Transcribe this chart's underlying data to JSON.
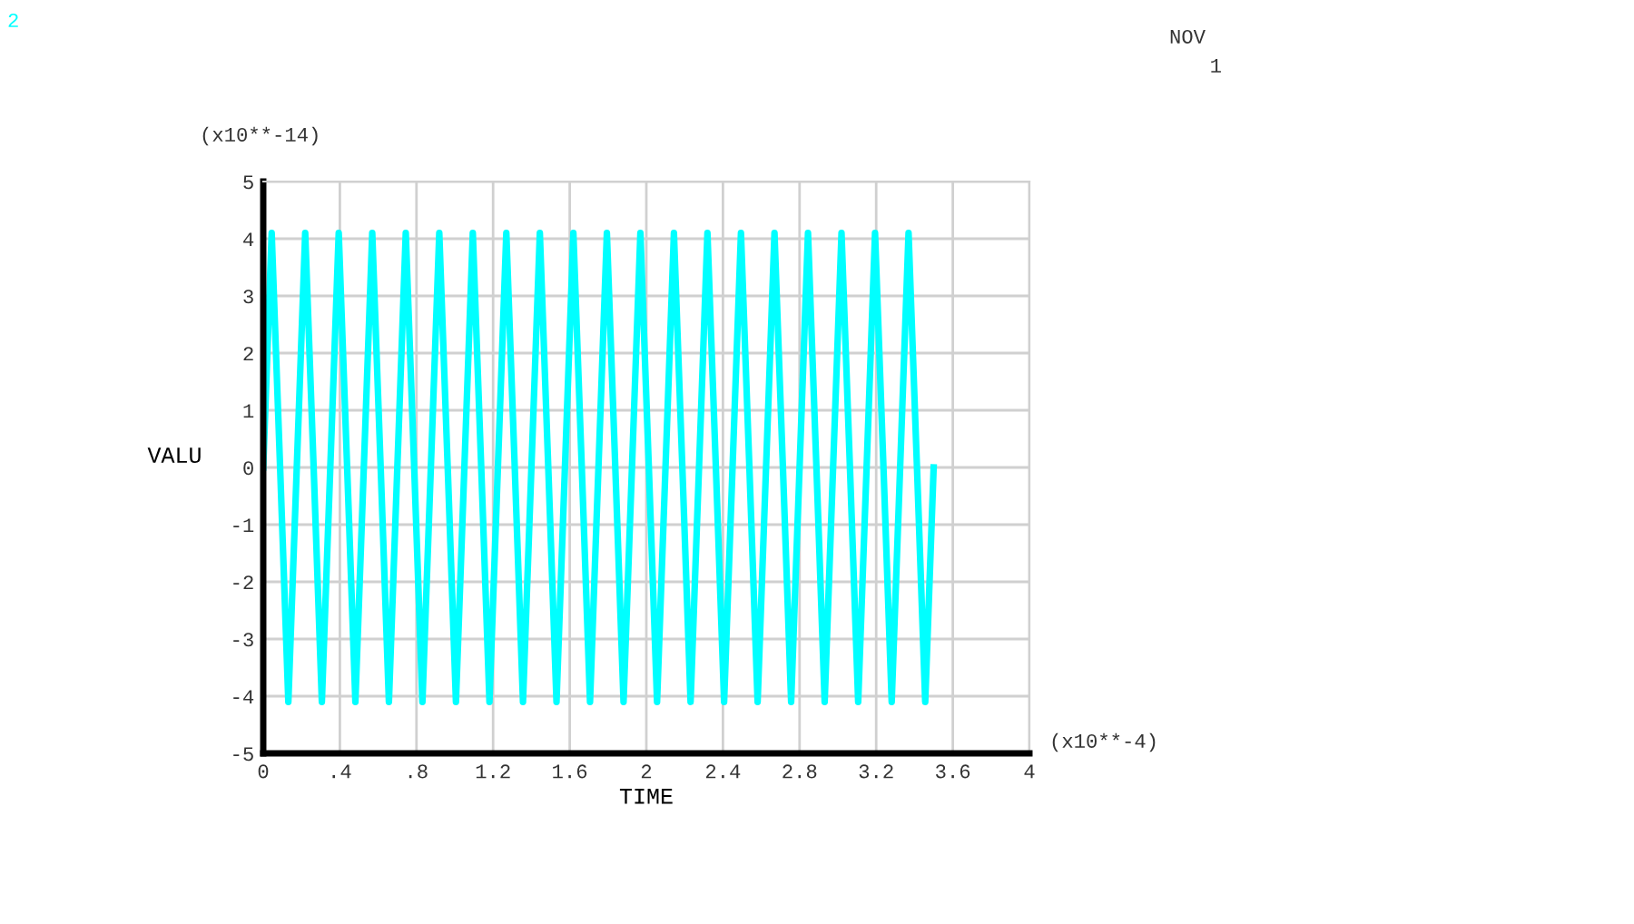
{
  "chart_data": {
    "type": "line",
    "xlabel": "TIME",
    "ylabel": "VALU",
    "annotations": [
      "(x10**-14)",
      "(x10**-4)",
      "NOV",
      "1",
      "2"
    ],
    "xlim": [
      0,
      4
    ],
    "ylim": [
      -5,
      5
    ],
    "xticks": [
      0,
      {
        "value": 0.4,
        "label": ".4"
      },
      {
        "value": 0.8,
        "label": ".8"
      },
      1.2,
      1.6,
      2,
      2.4,
      2.8,
      3.2,
      3.6,
      4
    ],
    "yticks": [
      -5,
      -4,
      -3,
      -2,
      -1,
      0,
      1,
      2,
      3,
      4,
      5
    ],
    "grid": true,
    "legend": false,
    "marker": "none",
    "line_style": "solid",
    "series": [
      {
        "color": "#00ffff",
        "x": [
          0,
          0.044,
          0.088,
          0.131,
          0.175,
          0.219,
          0.263,
          0.306,
          0.35,
          0.394,
          0.438,
          0.481,
          0.525,
          0.569,
          0.613,
          0.656,
          0.7,
          0.744,
          0.788,
          0.831,
          0.875,
          0.919,
          0.963,
          1.006,
          1.05,
          1.094,
          1.138,
          1.181,
          1.225,
          1.269,
          1.313,
          1.356,
          1.4,
          1.444,
          1.488,
          1.531,
          1.575,
          1.619,
          1.663,
          1.706,
          1.75,
          1.794,
          1.838,
          1.881,
          1.925,
          1.969,
          2.013,
          2.056,
          2.1,
          2.144,
          2.188,
          2.231,
          2.275,
          2.319,
          2.363,
          2.406,
          2.45,
          2.494,
          2.538,
          2.581,
          2.625,
          2.669,
          2.713,
          2.756,
          2.8,
          2.844,
          2.888,
          2.931,
          2.975,
          3.019,
          3.063,
          3.106,
          3.15,
          3.194,
          3.238,
          3.281,
          3.325,
          3.369,
          3.413,
          3.456,
          3.5
        ],
        "values": [
          0,
          4.1,
          0,
          -4.1,
          0,
          4.1,
          0,
          -4.1,
          0,
          4.1,
          0,
          -4.1,
          0,
          4.1,
          0,
          -4.1,
          0,
          4.1,
          0,
          -4.1,
          0,
          4.1,
          0,
          -4.1,
          0,
          4.1,
          0,
          -4.1,
          0,
          4.1,
          0,
          -4.1,
          0,
          4.1,
          0,
          -4.1,
          0,
          4.1,
          0,
          -4.1,
          0,
          4.1,
          0,
          -4.1,
          0,
          4.1,
          0,
          -4.1,
          0,
          4.1,
          0,
          -4.1,
          0,
          4.1,
          0,
          -4.1,
          0,
          4.1,
          0,
          -4.1,
          0,
          4.1,
          0,
          -4.1,
          0,
          4.1,
          0,
          -4.1,
          0,
          4.1,
          0,
          -4.1,
          0,
          4.1,
          0,
          -4.1,
          0,
          4.1,
          0,
          -4.1,
          0
        ]
      }
    ]
  }
}
